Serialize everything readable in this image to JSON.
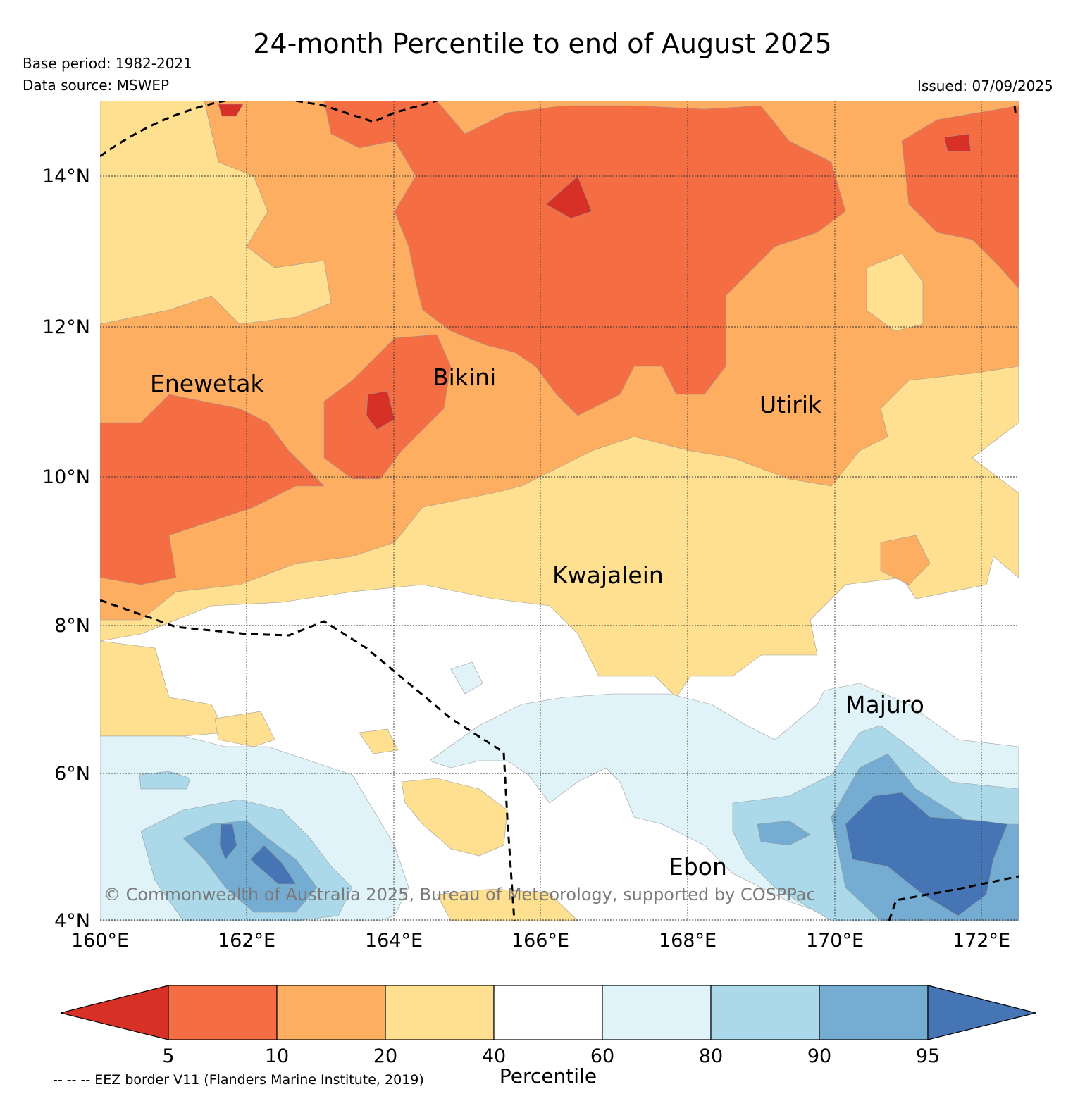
{
  "header": {
    "title": "24-month Percentile to end of August 2025",
    "base_period": "Base period: 1982-2021",
    "data_source": "Data source: MSWEP",
    "issued": "Issued: 07/09/2025"
  },
  "map": {
    "lat_ticks": [
      "14°N",
      "12°N",
      "10°N",
      "8°N",
      "6°N",
      "4°N"
    ],
    "lon_ticks": [
      "160°E",
      "162°E",
      "164°E",
      "166°E",
      "168°E",
      "170°E",
      "172°E"
    ],
    "places": [
      "Enewetak",
      "Bikini",
      "Utirik",
      "Kwajalein",
      "Majuro",
      "Ebon"
    ],
    "copyright": "© Commonwealth of Australia 2025, Bureau of Meteorology, supported by COSPPac",
    "colors": {
      "below5": "#d73027",
      "p5_10": "#f46d43",
      "p10_20": "#fdae61",
      "p20_40": "#fee090",
      "p40_60": "#ffffff",
      "p60_80": "#e0f3f8",
      "p80_90": "#abd9e9",
      "p90_95": "#74add1",
      "above95": "#4575b4"
    }
  },
  "colorbar": {
    "labels": [
      "5",
      "10",
      "20",
      "40",
      "60",
      "80",
      "90",
      "95"
    ],
    "title": "Percentile"
  },
  "footnote": "-- -- -- EEZ border V11 (Flanders Marine Institute, 2019)"
}
